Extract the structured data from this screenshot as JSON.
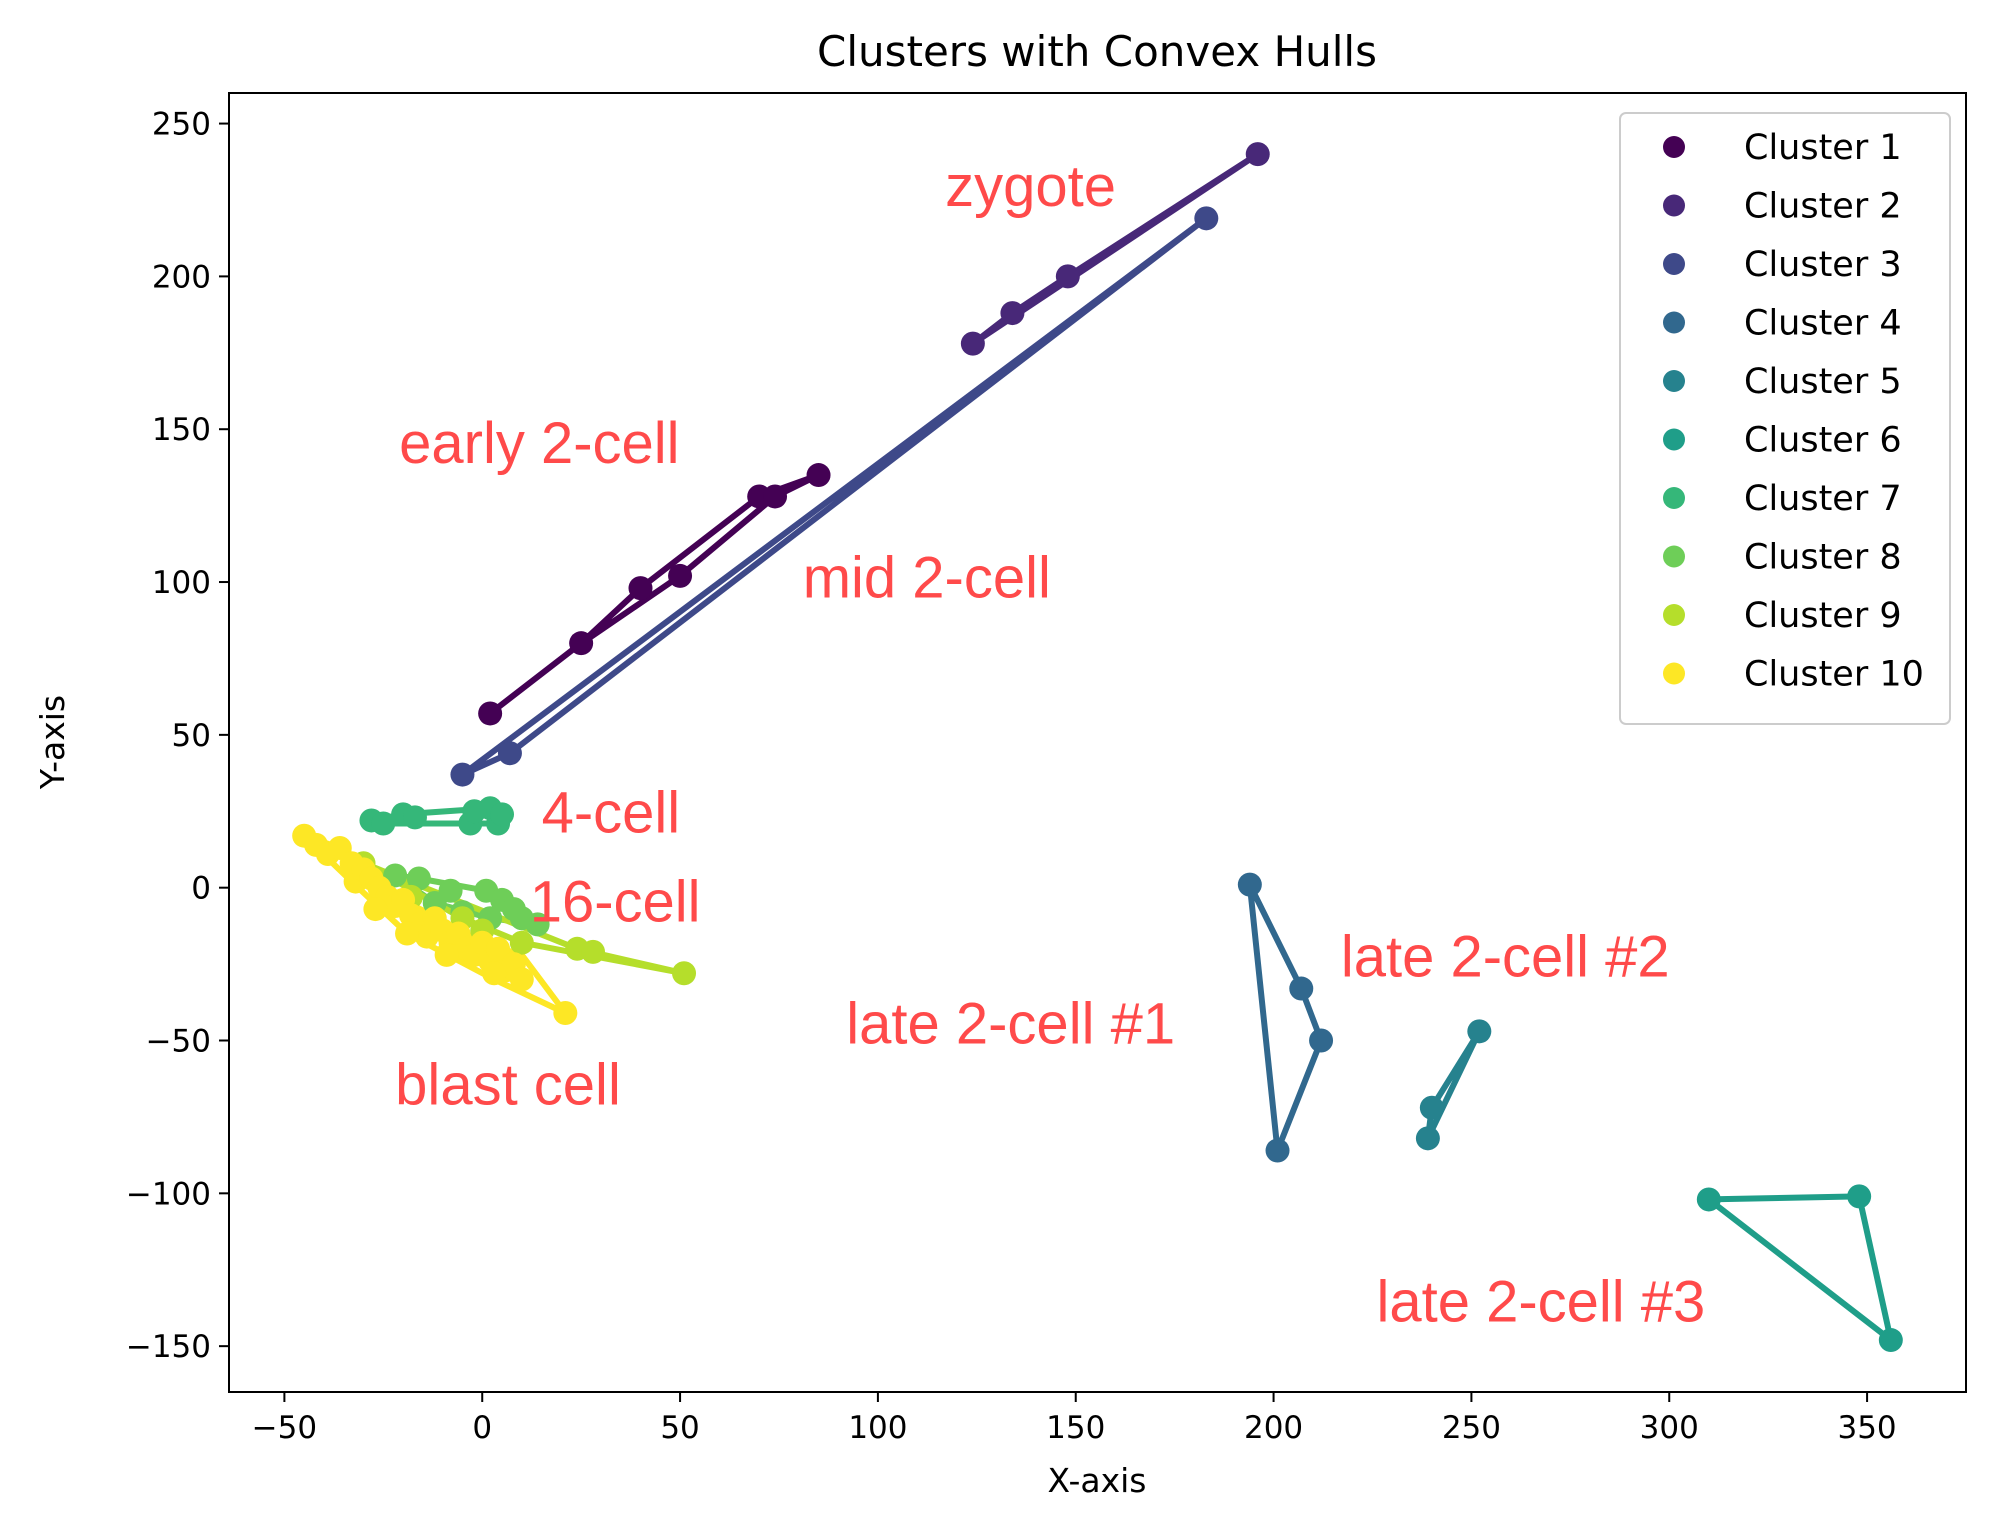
{
  "chart_data": {
    "type": "scatter",
    "title": "Clusters with Convex Hulls",
    "xlabel": "X-axis",
    "ylabel": "Y-axis",
    "xlim": [
      -64,
      375
    ],
    "ylim": [
      -165,
      260
    ],
    "xticks": [
      -50,
      0,
      50,
      100,
      150,
      200,
      250,
      300,
      350
    ],
    "yticks": [
      -150,
      -100,
      -50,
      0,
      50,
      100,
      150,
      200,
      250
    ],
    "xtick_labels": [
      "−50",
      "0",
      "50",
      "100",
      "150",
      "200",
      "250",
      "300",
      "350"
    ],
    "ytick_labels": [
      "−150",
      "−100",
      "−50",
      "0",
      "50",
      "100",
      "150",
      "200",
      "250"
    ],
    "grid": false,
    "legend_position": "top-right",
    "series": [
      {
        "name": "Cluster 1",
        "color": "#440154",
        "points": [
          [
            2,
            57
          ],
          [
            25,
            80
          ],
          [
            40,
            98
          ],
          [
            50,
            102
          ],
          [
            70,
            128
          ],
          [
            74,
            128
          ],
          [
            85,
            135
          ]
        ],
        "hull": [
          [
            2,
            57
          ],
          [
            25,
            80
          ],
          [
            40,
            98
          ],
          [
            70,
            128
          ],
          [
            85,
            135
          ],
          [
            74,
            128
          ],
          [
            50,
            102
          ],
          [
            24,
            79
          ]
        ]
      },
      {
        "name": "Cluster 2",
        "color": "#482878",
        "points": [
          [
            124,
            178
          ],
          [
            134,
            188
          ],
          [
            148,
            200
          ],
          [
            196,
            240
          ]
        ],
        "hull": [
          [
            124,
            178
          ],
          [
            134,
            188
          ],
          [
            148,
            200
          ],
          [
            196,
            240
          ],
          [
            124,
            178
          ]
        ]
      },
      {
        "name": "Cluster 3",
        "color": "#3e4989",
        "points": [
          [
            -5,
            37
          ],
          [
            7,
            44
          ],
          [
            183,
            219
          ]
        ],
        "hull": [
          [
            -5,
            37
          ],
          [
            183,
            219
          ],
          [
            7,
            44
          ]
        ]
      },
      {
        "name": "Cluster 4",
        "color": "#31688e",
        "points": [
          [
            194,
            1
          ],
          [
            207,
            -33
          ],
          [
            212,
            -50
          ],
          [
            201,
            -86
          ]
        ],
        "hull": [
          [
            194,
            1
          ],
          [
            207,
            -33
          ],
          [
            212,
            -50
          ],
          [
            201,
            -86
          ]
        ]
      },
      {
        "name": "Cluster 5",
        "color": "#26828e",
        "points": [
          [
            252,
            -47
          ],
          [
            240,
            -72
          ],
          [
            239,
            -82
          ]
        ],
        "hull": [
          [
            252,
            -47
          ],
          [
            240,
            -72
          ],
          [
            239,
            -82
          ]
        ]
      },
      {
        "name": "Cluster 6",
        "color": "#1f9e89",
        "points": [
          [
            310,
            -102
          ],
          [
            348,
            -101
          ],
          [
            356,
            -148
          ]
        ],
        "hull": [
          [
            310,
            -102
          ],
          [
            348,
            -101
          ],
          [
            356,
            -148
          ]
        ]
      },
      {
        "name": "Cluster 7",
        "color": "#35b779",
        "points": [
          [
            -28,
            22
          ],
          [
            -25,
            21
          ],
          [
            -20,
            24
          ],
          [
            -17,
            23
          ],
          [
            -3,
            21
          ],
          [
            2,
            26
          ],
          [
            4,
            21
          ],
          [
            5,
            24
          ],
          [
            -2,
            25
          ]
        ],
        "hull": [
          [
            -28,
            22
          ],
          [
            -20,
            24
          ],
          [
            2,
            26
          ],
          [
            5,
            24
          ],
          [
            4,
            21
          ],
          [
            -3,
            21
          ],
          [
            -25,
            21
          ]
        ]
      },
      {
        "name": "Cluster 8",
        "color": "#6ece58",
        "points": [
          [
            -22,
            4
          ],
          [
            -16,
            3
          ],
          [
            -8,
            -1
          ],
          [
            1,
            -1
          ],
          [
            5,
            -4
          ],
          [
            8,
            -7
          ],
          [
            10,
            -10
          ],
          [
            14,
            -12
          ],
          [
            -12,
            -5
          ],
          [
            -5,
            -8
          ],
          [
            2,
            -10
          ]
        ],
        "hull": [
          [
            -22,
            4
          ],
          [
            -16,
            3
          ],
          [
            1,
            -1
          ],
          [
            8,
            -7
          ],
          [
            14,
            -12
          ],
          [
            2,
            -10
          ],
          [
            -12,
            -5
          ]
        ]
      },
      {
        "name": "Cluster 9",
        "color": "#b5de2b",
        "points": [
          [
            -30,
            8
          ],
          [
            -18,
            -3
          ],
          [
            -5,
            -10
          ],
          [
            10,
            -18
          ],
          [
            24,
            -20
          ],
          [
            28,
            -21
          ],
          [
            51,
            -28
          ],
          [
            0,
            -14
          ]
        ],
        "hull": [
          [
            -30,
            8
          ],
          [
            24,
            -20
          ],
          [
            51,
            -28
          ],
          [
            10,
            -18
          ],
          [
            -5,
            -10
          ]
        ]
      },
      {
        "name": "Cluster 10",
        "color": "#fde725",
        "points": [
          [
            -45,
            17
          ],
          [
            -42,
            14
          ],
          [
            -39,
            11
          ],
          [
            -36,
            13
          ],
          [
            -33,
            8
          ],
          [
            -32,
            2
          ],
          [
            -30,
            6
          ],
          [
            -28,
            3
          ],
          [
            -26,
            0
          ],
          [
            -24,
            -3
          ],
          [
            -22,
            -6
          ],
          [
            -20,
            -4
          ],
          [
            -18,
            -9
          ],
          [
            -16,
            -12
          ],
          [
            -14,
            -16
          ],
          [
            -12,
            -10
          ],
          [
            -10,
            -14
          ],
          [
            -8,
            -18
          ],
          [
            -6,
            -15
          ],
          [
            -4,
            -20
          ],
          [
            -2,
            -22
          ],
          [
            0,
            -18
          ],
          [
            2,
            -24
          ],
          [
            4,
            -20
          ],
          [
            6,
            -27
          ],
          [
            8,
            -25
          ],
          [
            10,
            -30
          ],
          [
            -27,
            -7
          ],
          [
            -19,
            -15
          ],
          [
            -9,
            -22
          ],
          [
            3,
            -28
          ],
          [
            21,
            -41
          ]
        ],
        "hull": [
          [
            -45,
            17
          ],
          [
            -36,
            13
          ],
          [
            -20,
            -4
          ],
          [
            0,
            -18
          ],
          [
            10,
            -22
          ],
          [
            21,
            -41
          ],
          [
            3,
            -30
          ],
          [
            -19,
            -15
          ],
          [
            -33,
            2
          ]
        ]
      }
    ],
    "annotations": [
      {
        "text": "zygote",
        "x": 117,
        "y": 223
      },
      {
        "text": "early 2-cell",
        "x": -21,
        "y": 139
      },
      {
        "text": "mid 2-cell",
        "x": 81,
        "y": 95
      },
      {
        "text": "4-cell",
        "x": 15,
        "y": 18
      },
      {
        "text": "16-cell",
        "x": 12,
        "y": -11
      },
      {
        "text": "blast cell",
        "x": -22,
        "y": -71
      },
      {
        "text": "late 2-cell #1",
        "x": 92,
        "y": -51
      },
      {
        "text": "late 2-cell #2",
        "x": 217,
        "y": -29
      },
      {
        "text": "late 2-cell #3",
        "x": 226,
        "y": -142
      }
    ]
  }
}
